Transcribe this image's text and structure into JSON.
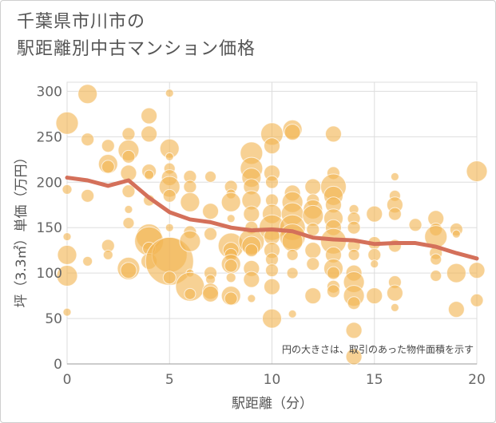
{
  "chart_data": {
    "type": "scatter",
    "title_line1": "千葉県市川市の",
    "title_line2": "駅距離別中古マンション価格",
    "xlabel": "駅距離（分）",
    "ylabel": "坪（3.3㎡）単価（万円）",
    "note": "円の大きさは、取引のあった物件面積を示す",
    "xlim": [
      0,
      20
    ],
    "ylim": [
      0,
      310
    ],
    "xticks": [
      "0",
      "5",
      "10",
      "15",
      "20"
    ],
    "yticks": [
      "0",
      "50",
      "100",
      "150",
      "200",
      "250",
      "300"
    ],
    "grid": true,
    "colors": {
      "bubble": "#f2b452",
      "trend": "#d4705a",
      "grid": "#dddddd"
    },
    "points": [
      [
        0,
        265,
        14
      ],
      [
        0,
        192,
        6
      ],
      [
        0,
        140,
        5
      ],
      [
        0,
        120,
        12
      ],
      [
        0,
        97,
        13
      ],
      [
        0,
        57,
        5
      ],
      [
        1,
        297,
        12
      ],
      [
        1,
        247,
        8
      ],
      [
        1,
        185,
        8
      ],
      [
        1,
        113,
        6
      ],
      [
        2,
        240,
        8
      ],
      [
        2,
        220,
        12
      ],
      [
        2,
        217,
        8
      ],
      [
        2,
        130,
        8
      ],
      [
        2,
        120,
        6
      ],
      [
        3,
        253,
        8
      ],
      [
        3,
        235,
        13
      ],
      [
        3,
        228,
        8
      ],
      [
        3,
        210,
        10
      ],
      [
        3,
        190,
        8
      ],
      [
        3,
        170,
        5
      ],
      [
        3,
        155,
        7
      ],
      [
        3,
        105,
        14
      ],
      [
        3,
        103,
        10
      ],
      [
        4,
        273,
        10
      ],
      [
        4,
        253,
        10
      ],
      [
        4,
        212,
        9
      ],
      [
        4,
        208,
        6
      ],
      [
        4,
        180,
        7
      ],
      [
        4,
        140,
        16
      ],
      [
        4,
        135,
        18
      ],
      [
        4,
        127,
        8
      ],
      [
        4,
        113,
        10
      ],
      [
        5,
        298,
        5
      ],
      [
        5,
        237,
        12
      ],
      [
        5,
        228,
        5
      ],
      [
        5,
        215,
        7
      ],
      [
        5,
        205,
        10
      ],
      [
        5,
        195,
        13
      ],
      [
        5,
        185,
        8
      ],
      [
        5,
        150,
        5
      ],
      [
        5,
        120,
        22
      ],
      [
        5,
        113,
        30
      ],
      [
        5,
        95,
        8
      ],
      [
        6,
        206,
        8
      ],
      [
        6,
        195,
        8
      ],
      [
        6,
        178,
        12
      ],
      [
        6,
        145,
        8
      ],
      [
        6,
        135,
        13
      ],
      [
        6,
        100,
        5
      ],
      [
        6,
        85,
        18
      ],
      [
        6,
        77,
        7
      ],
      [
        7,
        206,
        7
      ],
      [
        7,
        168,
        10
      ],
      [
        7,
        143,
        8
      ],
      [
        7,
        100,
        8
      ],
      [
        7,
        93,
        6
      ],
      [
        7,
        80,
        10
      ],
      [
        7,
        77,
        10
      ],
      [
        8,
        195,
        8
      ],
      [
        8,
        187,
        6
      ],
      [
        8,
        178,
        12
      ],
      [
        8,
        160,
        5
      ],
      [
        8,
        130,
        16
      ],
      [
        8,
        125,
        10
      ],
      [
        8,
        120,
        8
      ],
      [
        8,
        110,
        12
      ],
      [
        8,
        108,
        8
      ],
      [
        8,
        95,
        6
      ],
      [
        8,
        75,
        12
      ],
      [
        8,
        72,
        8
      ],
      [
        9,
        232,
        14
      ],
      [
        9,
        215,
        14
      ],
      [
        9,
        205,
        12
      ],
      [
        9,
        195,
        10
      ],
      [
        9,
        180,
        12
      ],
      [
        9,
        165,
        10
      ],
      [
        9,
        150,
        8
      ],
      [
        9,
        135,
        16
      ],
      [
        9,
        130,
        12
      ],
      [
        9,
        125,
        8
      ],
      [
        9,
        105,
        10
      ],
      [
        9,
        93,
        10
      ],
      [
        9,
        72,
        5
      ],
      [
        10,
        253,
        14
      ],
      [
        10,
        240,
        10
      ],
      [
        10,
        210,
        10
      ],
      [
        10,
        200,
        8
      ],
      [
        10,
        180,
        8
      ],
      [
        10,
        165,
        12
      ],
      [
        10,
        150,
        16
      ],
      [
        10,
        140,
        10
      ],
      [
        10,
        125,
        10
      ],
      [
        10,
        115,
        8
      ],
      [
        10,
        103,
        8
      ],
      [
        10,
        85,
        10
      ],
      [
        10,
        50,
        12
      ],
      [
        11,
        258,
        12
      ],
      [
        11,
        255,
        10
      ],
      [
        11,
        188,
        10
      ],
      [
        11,
        178,
        13
      ],
      [
        11,
        165,
        14
      ],
      [
        11,
        150,
        16
      ],
      [
        11,
        140,
        16
      ],
      [
        11,
        135,
        13
      ],
      [
        11,
        120,
        7
      ],
      [
        11,
        100,
        7
      ],
      [
        11,
        55,
        5
      ],
      [
        12,
        195,
        10
      ],
      [
        12,
        180,
        8
      ],
      [
        12,
        170,
        12
      ],
      [
        12,
        163,
        13
      ],
      [
        12,
        148,
        8
      ],
      [
        12,
        125,
        10
      ],
      [
        12,
        110,
        8
      ],
      [
        12,
        75,
        10
      ],
      [
        13,
        253,
        10
      ],
      [
        13,
        210,
        8
      ],
      [
        13,
        195,
        16
      ],
      [
        13,
        185,
        12
      ],
      [
        13,
        175,
        10
      ],
      [
        13,
        160,
        12
      ],
      [
        13,
        150,
        10
      ],
      [
        13,
        135,
        16
      ],
      [
        13,
        120,
        10
      ],
      [
        13,
        105,
        12
      ],
      [
        13,
        100,
        8
      ],
      [
        13,
        85,
        8
      ],
      [
        13,
        80,
        8
      ],
      [
        14,
        170,
        6
      ],
      [
        14,
        160,
        8
      ],
      [
        14,
        150,
        8
      ],
      [
        14,
        130,
        8
      ],
      [
        14,
        120,
        7
      ],
      [
        14,
        100,
        10
      ],
      [
        14,
        90,
        13
      ],
      [
        14,
        75,
        13
      ],
      [
        14,
        67,
        8
      ],
      [
        14,
        37,
        10
      ],
      [
        14,
        8,
        10
      ],
      [
        15,
        165,
        10
      ],
      [
        15,
        133,
        8
      ],
      [
        15,
        120,
        8
      ],
      [
        15,
        110,
        5
      ],
      [
        15,
        75,
        10
      ],
      [
        16,
        206,
        5
      ],
      [
        16,
        185,
        7
      ],
      [
        16,
        175,
        10
      ],
      [
        16,
        165,
        8
      ],
      [
        16,
        130,
        8
      ],
      [
        16,
        90,
        8
      ],
      [
        16,
        78,
        10
      ],
      [
        16,
        62,
        5
      ],
      [
        17,
        153,
        8
      ],
      [
        18,
        160,
        10
      ],
      [
        18,
        148,
        8
      ],
      [
        18,
        140,
        14
      ],
      [
        18,
        122,
        8
      ],
      [
        18,
        115,
        7
      ],
      [
        18,
        97,
        7
      ],
      [
        19,
        148,
        8
      ],
      [
        19,
        143,
        5
      ],
      [
        19,
        100,
        12
      ],
      [
        19,
        60,
        10
      ],
      [
        20,
        212,
        13
      ],
      [
        20,
        103,
        10
      ],
      [
        20,
        70,
        8
      ]
    ],
    "trend": [
      [
        0,
        205
      ],
      [
        1,
        202
      ],
      [
        2,
        196
      ],
      [
        3,
        202
      ],
      [
        4,
        183
      ],
      [
        5,
        167
      ],
      [
        6,
        159
      ],
      [
        7,
        156
      ],
      [
        8,
        150
      ],
      [
        9,
        147
      ],
      [
        10,
        148
      ],
      [
        11,
        146
      ],
      [
        12,
        139
      ],
      [
        13,
        137
      ],
      [
        14,
        136
      ],
      [
        15,
        132
      ],
      [
        16,
        133
      ],
      [
        17,
        133
      ],
      [
        18,
        129
      ],
      [
        19,
        122
      ],
      [
        20,
        116
      ]
    ]
  }
}
